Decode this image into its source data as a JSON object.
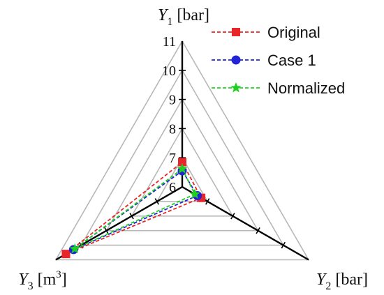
{
  "chart_data": {
    "type": "radar",
    "axes": [
      {
        "var": "Y",
        "sub": "1",
        "unit": "[bar]",
        "sup": ""
      },
      {
        "var": "Y",
        "sub": "2",
        "unit": "[bar]",
        "sup": ""
      },
      {
        "var": "Y",
        "sub": "3",
        "unit": "[m",
        "sup": "3",
        "unit_end": "]"
      }
    ],
    "r_range": [
      6,
      11
    ],
    "tick_labels": [
      "6",
      "7",
      "8",
      "9",
      "10",
      "11"
    ],
    "grid": true,
    "legend_position": "top-right",
    "series": [
      {
        "name": "Original",
        "color": "#e8262a",
        "marker": "square",
        "values": [
          6.85,
          6.75,
          10.6
        ]
      },
      {
        "name": "Case 1",
        "color": "#2323d6",
        "marker": "circle",
        "values": [
          6.55,
          6.6,
          10.3
        ]
      },
      {
        "name": "Normalized",
        "color": "#1fd11f",
        "marker": "star",
        "values": [
          6.62,
          6.5,
          10.25
        ]
      }
    ]
  }
}
